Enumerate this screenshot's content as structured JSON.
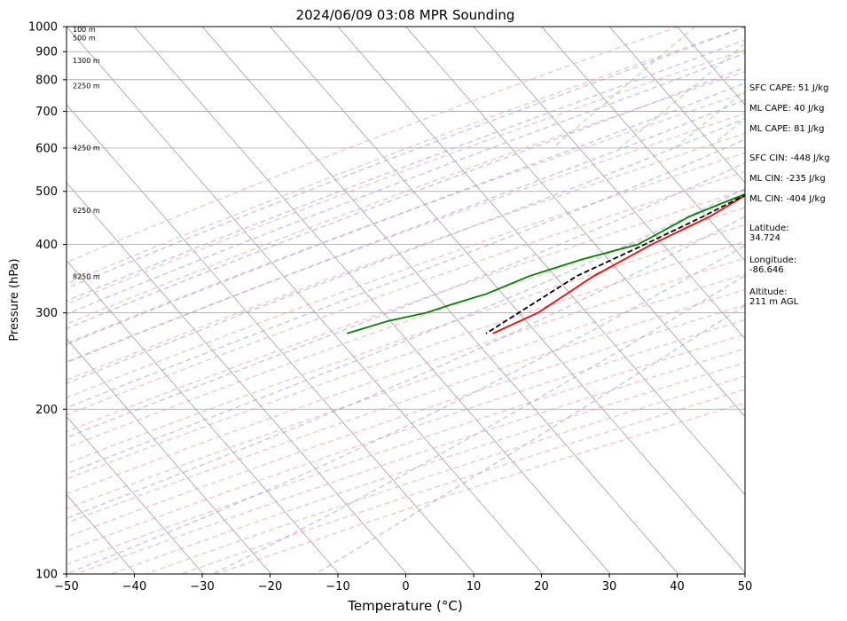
{
  "chart_data": {
    "type": "line",
    "title": "2024/06/09 03:08 MPR Sounding",
    "xlabel": "Temperature (°C)",
    "ylabel": "Pressure (hPa)",
    "xlim": [
      -50,
      50
    ],
    "ylim": [
      1000,
      100
    ],
    "y_scale": "log",
    "x_ticks": [
      -50,
      -40,
      -30,
      -20,
      -10,
      0,
      10,
      20,
      30,
      40,
      50
    ],
    "x_tick_labels": [
      "−50",
      "−40",
      "−30",
      "−20",
      "−10",
      "0",
      "10",
      "20",
      "30",
      "40",
      "50"
    ],
    "y_ticks": [
      1000,
      900,
      800,
      700,
      600,
      500,
      400,
      300,
      200,
      100
    ],
    "y_tick_labels": [
      "1000",
      "900",
      "800",
      "700",
      "600",
      "500",
      "400",
      "300",
      "200",
      "100"
    ],
    "grid": true,
    "skew": true,
    "colors": {
      "temperature": "#ff0000",
      "dewpoint": "#008000",
      "parcel": "#000000",
      "dry_adiabats": "#f4a0a0",
      "moist_adiabats": "#9f9fef",
      "mixing_ratio": "#8fcf8f",
      "isotherms": "#a0a0a0",
      "isobars": "#a0a0a0"
    },
    "series": [
      {
        "name": "",
        "role": "temperature",
        "style": "solid",
        "x": [
          24.0,
          26.0,
          25.5,
          24.0,
          22.0,
          19.5,
          18.3,
          15.0,
          12.0,
          9.5,
          8.2,
          7.3,
          4.8,
          2.0,
          -1.0,
          -6.0,
          -10.5,
          -14.0,
          -18.0
        ],
        "y": [
          1000,
          975,
          950,
          925,
          900,
          875,
          850,
          800,
          750,
          700,
          650,
          600,
          550,
          500,
          450,
          400,
          350,
          300,
          275
        ]
      },
      {
        "name": "",
        "role": "dewpoint",
        "style": "solid",
        "x": [
          16.5,
          13.0,
          11.5,
          11.0,
          11.0,
          11.0,
          10.5,
          10.5,
          9.5,
          8.3,
          9.5,
          9.8,
          7.8,
          6.0,
          4.0,
          2.0,
          -1.0,
          -4.0,
          -8.0,
          -14.5,
          -20.0,
          -24.0,
          -28.0,
          -30.5,
          -35.0,
          -39.5
        ],
        "y": [
          1000,
          970,
          950,
          925,
          900,
          875,
          850,
          825,
          800,
          750,
          700,
          650,
          600,
          575,
          525,
          500,
          475,
          450,
          400,
          375,
          350,
          325,
          310,
          300,
          290,
          275
        ]
      },
      {
        "name": "",
        "role": "parcel",
        "style": "dashed",
        "x": [
          24.0,
          17.0,
          14.5,
          12.5,
          11.5,
          10.0,
          9.0,
          7.0,
          5.0,
          2.0,
          -2.0,
          -7.0,
          -13.0,
          -19.0
        ],
        "y": [
          1000,
          900,
          850,
          800,
          750,
          700,
          650,
          600,
          550,
          500,
          450,
          400,
          350,
          275
        ]
      }
    ],
    "height_labels": [
      {
        "text": "100 m",
        "p": 988
      },
      {
        "text": "500 m",
        "p": 955
      },
      {
        "text": "1300 m",
        "p": 868
      },
      {
        "text": "2250 m",
        "p": 780
      },
      {
        "text": "4250 m",
        "p": 601
      },
      {
        "text": "6250 m",
        "p": 462
      },
      {
        "text": "8250 m",
        "p": 350
      }
    ],
    "annotations": [
      {
        "text": "SFC CAPE: 51 J/kg"
      },
      {
        "text": "ML CAPE: 40 J/kg"
      },
      {
        "text": "ML CAPE: 81 J/kg"
      },
      {
        "text": "SFC CIN: -448 J/kg"
      },
      {
        "text": "ML CIN: -235 J/kg"
      },
      {
        "text": "ML CIN: -404 J/kg"
      },
      {
        "text": "Latitude:\n34.724"
      },
      {
        "text": "Longitude:\n-86.646"
      },
      {
        "text": "Altitude:\n211 m AGL"
      }
    ]
  }
}
